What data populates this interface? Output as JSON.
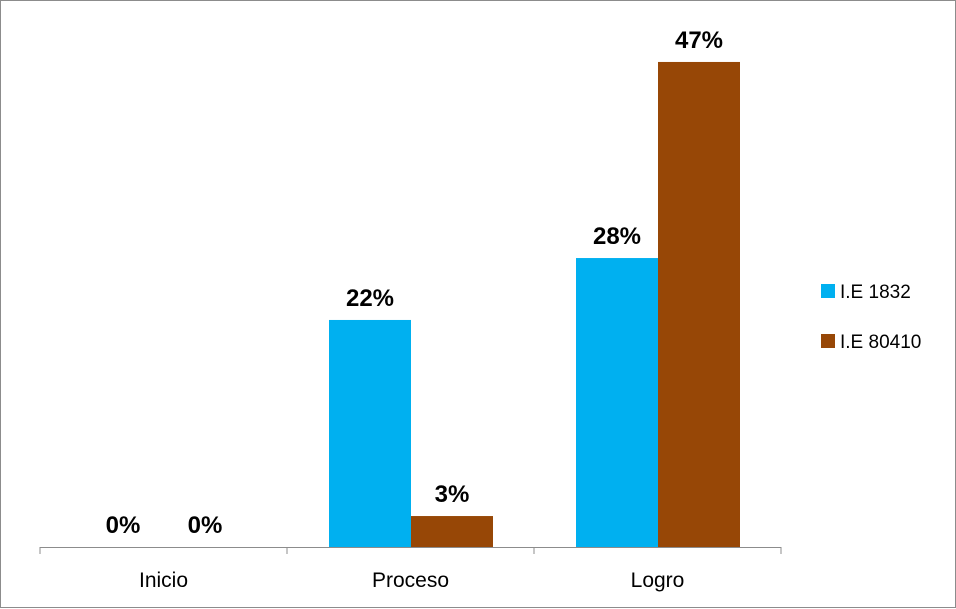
{
  "chart_data": {
    "type": "bar",
    "categories": [
      "Inicio",
      "Proceso",
      "Logro"
    ],
    "series": [
      {
        "name": "I.E 1832",
        "values": [
          0,
          22,
          28
        ],
        "labels": [
          "0%",
          "22%",
          "28%"
        ],
        "color": "#00b0f0"
      },
      {
        "name": "I.E 80410",
        "values": [
          0,
          3,
          47
        ],
        "labels": [
          "0%",
          "3%",
          "47%"
        ],
        "color": "#974706"
      }
    ],
    "unit": "%",
    "ylim": [
      0,
      50
    ],
    "grid": false,
    "legend": "right"
  }
}
